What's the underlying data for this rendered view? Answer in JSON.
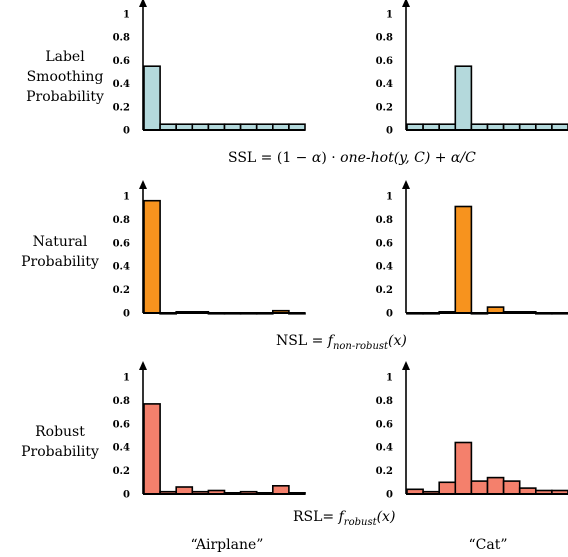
{
  "row_labels": [
    [
      "Label",
      "Smoothing",
      "Probability"
    ],
    [
      "Natural",
      "Probability"
    ],
    [
      "Robust",
      "Probability"
    ]
  ],
  "equations": {
    "ssl": {
      "prefix": "SSL = (1 − ",
      "alpha1": "α",
      "mid": ") · ",
      "onehot": "one-hot",
      "args": "(y, C) + ",
      "alpha2": "α",
      "tail": "/C"
    },
    "nsl": {
      "prefix": "NSL = ",
      "f": "f",
      "sub": "non-robust",
      "arg": "(x)"
    },
    "rsl": {
      "prefix": "RSL= ",
      "f": "f",
      "sub": "robust",
      "arg": "(x)"
    }
  },
  "column_labels": [
    "“Airplane”",
    "“Cat”"
  ],
  "colors": {
    "label_smoothing": "#b4d9dc",
    "natural": "#f7931e",
    "robust": "#f4806c"
  },
  "chart_data": [
    {
      "type": "bar",
      "row": "Label Smoothing Probability",
      "class": "Airplane",
      "ylim": [
        0,
        1
      ],
      "yticks": [
        "0",
        "0.2",
        "0.4",
        "0.6",
        "0.8",
        "1"
      ],
      "values": [
        0.55,
        0.05,
        0.05,
        0.05,
        0.05,
        0.05,
        0.05,
        0.05,
        0.05,
        0.05
      ]
    },
    {
      "type": "bar",
      "row": "Label Smoothing Probability",
      "class": "Cat",
      "ylim": [
        0,
        1
      ],
      "yticks": [
        "0",
        "0.2",
        "0.4",
        "0.6",
        "0.8",
        "1"
      ],
      "values": [
        0.05,
        0.05,
        0.05,
        0.55,
        0.05,
        0.05,
        0.05,
        0.05,
        0.05,
        0.05
      ]
    },
    {
      "type": "bar",
      "row": "Natural Probability",
      "class": "Airplane",
      "ylim": [
        0,
        1
      ],
      "yticks": [
        "0",
        "0.2",
        "0.4",
        "0.6",
        "0.8",
        "1"
      ],
      "values": [
        0.96,
        0.0,
        0.01,
        0.01,
        0.0,
        0.0,
        0.0,
        0.0,
        0.02,
        0.0
      ]
    },
    {
      "type": "bar",
      "row": "Natural Probability",
      "class": "Cat",
      "ylim": [
        0,
        1
      ],
      "yticks": [
        "0",
        "0.2",
        "0.4",
        "0.6",
        "0.8",
        "1"
      ],
      "values": [
        0.0,
        0.0,
        0.01,
        0.91,
        0.0,
        0.05,
        0.01,
        0.01,
        0.0,
        0.0
      ]
    },
    {
      "type": "bar",
      "row": "Robust Probability",
      "class": "Airplane",
      "ylim": [
        0,
        1
      ],
      "yticks": [
        "0",
        "0.2",
        "0.4",
        "0.6",
        "0.8",
        "1"
      ],
      "values": [
        0.77,
        0.02,
        0.06,
        0.02,
        0.03,
        0.01,
        0.02,
        0.01,
        0.07,
        0.01
      ]
    },
    {
      "type": "bar",
      "row": "Robust Probability",
      "class": "Cat",
      "ylim": [
        0,
        1
      ],
      "yticks": [
        "0",
        "0.2",
        "0.4",
        "0.6",
        "0.8",
        "1"
      ],
      "values": [
        0.04,
        0.02,
        0.1,
        0.44,
        0.11,
        0.14,
        0.11,
        0.05,
        0.03,
        0.03
      ]
    }
  ]
}
